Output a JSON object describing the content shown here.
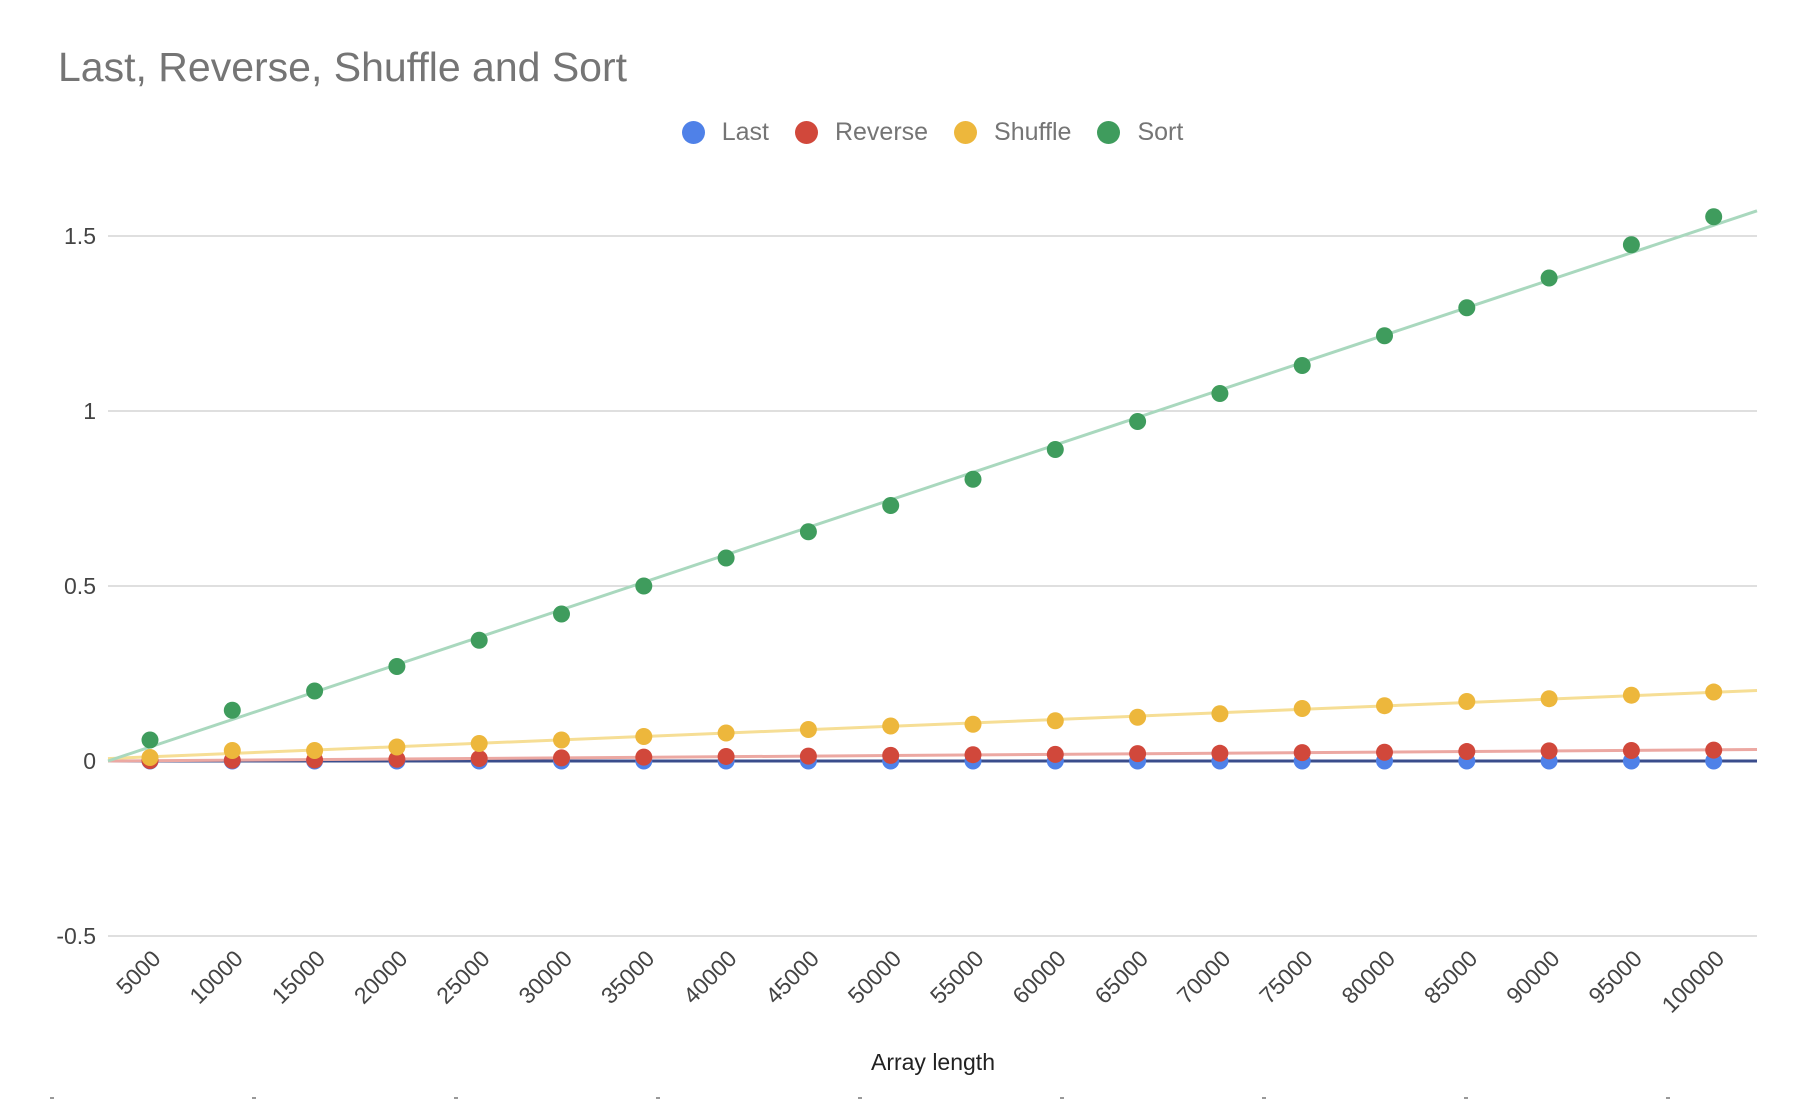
{
  "chart_data": {
    "type": "scatter",
    "title": "Last, Reverse, Shuffle and Sort",
    "xlabel": "Array length",
    "ylabel": "",
    "x": [
      5000,
      10000,
      15000,
      20000,
      25000,
      30000,
      35000,
      40000,
      45000,
      50000,
      55000,
      60000,
      65000,
      70000,
      75000,
      80000,
      85000,
      90000,
      95000,
      100000
    ],
    "x_tick_labels": [
      "5000",
      "10000",
      "15000",
      "20000",
      "25000",
      "30000",
      "35000",
      "40000",
      "45000",
      "50000",
      "55000",
      "60000",
      "65000",
      "70000",
      "75000",
      "80000",
      "85000",
      "90000",
      "95000",
      "100000"
    ],
    "ylim": [
      -0.5,
      1.5
    ],
    "y_ticks": [
      -0.5,
      0,
      0.5,
      1,
      1.5
    ],
    "y_tick_labels": [
      "-0.5",
      "0",
      "0.5",
      "1",
      "1.5"
    ],
    "grid": true,
    "legend_position": "top-center",
    "trendlines": true,
    "series": [
      {
        "name": "Last",
        "color": "#4f81e8",
        "trend_color": "#3a4d8c",
        "values": [
          0,
          0,
          0,
          0,
          0,
          0,
          0,
          0,
          0,
          0,
          0,
          0,
          0,
          0,
          0,
          0,
          0,
          0,
          0,
          0
        ]
      },
      {
        "name": "Reverse",
        "color": "#d1483b",
        "trend_color": "#eca8a2",
        "values": [
          0.001,
          0.002,
          0.003,
          0.005,
          0.007,
          0.009,
          0.011,
          0.013,
          0.014,
          0.016,
          0.018,
          0.019,
          0.021,
          0.022,
          0.024,
          0.025,
          0.027,
          0.029,
          0.03,
          0.031
        ]
      },
      {
        "name": "Shuffle",
        "color": "#edb73c",
        "trend_color": "#f6de95",
        "values": [
          0.01,
          0.03,
          0.03,
          0.04,
          0.05,
          0.06,
          0.07,
          0.08,
          0.09,
          0.1,
          0.105,
          0.115,
          0.125,
          0.135,
          0.15,
          0.158,
          0.17,
          0.178,
          0.188,
          0.197
        ]
      },
      {
        "name": "Sort",
        "color": "#3f9c5d",
        "trend_color": "#a9d8be",
        "values": [
          0.06,
          0.145,
          0.2,
          0.27,
          0.345,
          0.42,
          0.5,
          0.58,
          0.655,
          0.73,
          0.805,
          0.89,
          0.97,
          1.05,
          1.13,
          1.215,
          1.295,
          1.38,
          1.475,
          1.555
        ]
      }
    ]
  }
}
